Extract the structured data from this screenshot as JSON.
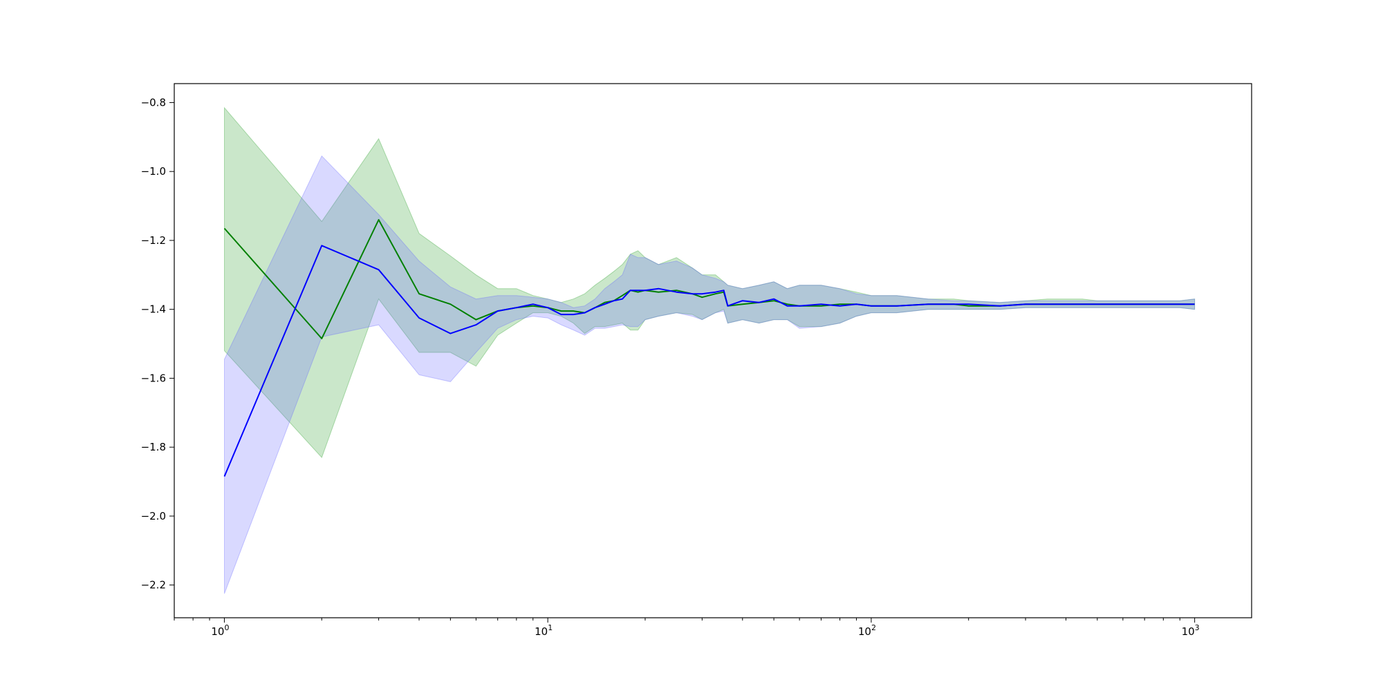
{
  "chart_data": {
    "type": "line",
    "title": "",
    "xlabel": "",
    "ylabel": "",
    "xscale": "log",
    "xlim": [
      0.7,
      1500
    ],
    "ylim": [
      -2.295,
      -0.745
    ],
    "grid": false,
    "legend": "none",
    "x_major_ticks": [
      {
        "value": 1,
        "base": "10",
        "exp": "0"
      },
      {
        "value": 10,
        "base": "10",
        "exp": "1"
      },
      {
        "value": 100,
        "base": "10",
        "exp": "2"
      },
      {
        "value": 1000,
        "base": "10",
        "exp": "3"
      }
    ],
    "y_ticks": [
      {
        "value": -0.8,
        "label": "−0.8"
      },
      {
        "value": -1.0,
        "label": "−1.0"
      },
      {
        "value": -1.2,
        "label": "−1.2"
      },
      {
        "value": -1.4,
        "label": "−1.4"
      },
      {
        "value": -1.6,
        "label": "−1.6"
      },
      {
        "value": -1.8,
        "label": "−1.8"
      },
      {
        "value": -2.0,
        "label": "−2.0"
      },
      {
        "value": -2.2,
        "label": "−2.2"
      }
    ],
    "series": [
      {
        "color": "#008000",
        "band_color": "#2ca02c",
        "x": [
          1,
          2,
          3,
          4,
          5,
          6,
          7,
          8,
          9,
          10,
          11,
          12,
          13,
          14,
          15,
          16,
          17,
          18,
          19,
          20,
          22,
          25,
          28,
          30,
          33,
          35,
          36,
          40,
          45,
          50,
          55,
          60,
          70,
          80,
          90,
          100,
          120,
          150,
          180,
          200,
          250,
          300,
          350,
          400,
          450,
          500,
          600,
          700,
          800,
          900,
          1000
        ],
        "mean": [
          -1.165,
          -1.485,
          -1.14,
          -1.355,
          -1.385,
          -1.43,
          -1.405,
          -1.395,
          -1.39,
          -1.395,
          -1.405,
          -1.405,
          -1.41,
          -1.395,
          -1.38,
          -1.375,
          -1.36,
          -1.345,
          -1.35,
          -1.345,
          -1.35,
          -1.345,
          -1.355,
          -1.365,
          -1.355,
          -1.35,
          -1.39,
          -1.385,
          -1.38,
          -1.375,
          -1.385,
          -1.39,
          -1.39,
          -1.385,
          -1.385,
          -1.39,
          -1.39,
          -1.385,
          -1.385,
          -1.39,
          -1.39,
          -1.385,
          -1.385,
          -1.385,
          -1.385,
          -1.385,
          -1.385,
          -1.385,
          -1.385,
          -1.385,
          -1.385
        ],
        "upper": [
          -0.815,
          -1.145,
          -0.905,
          -1.18,
          -1.245,
          -1.3,
          -1.34,
          -1.34,
          -1.36,
          -1.37,
          -1.38,
          -1.37,
          -1.355,
          -1.33,
          -1.31,
          -1.29,
          -1.27,
          -1.24,
          -1.23,
          -1.25,
          -1.27,
          -1.25,
          -1.28,
          -1.3,
          -1.3,
          -1.32,
          -1.33,
          -1.34,
          -1.33,
          -1.32,
          -1.34,
          -1.33,
          -1.33,
          -1.34,
          -1.35,
          -1.36,
          -1.36,
          -1.37,
          -1.37,
          -1.375,
          -1.38,
          -1.375,
          -1.37,
          -1.37,
          -1.37,
          -1.375,
          -1.375,
          -1.375,
          -1.375,
          -1.375,
          -1.37
        ],
        "lower": [
          -1.52,
          -1.83,
          -1.37,
          -1.525,
          -1.525,
          -1.565,
          -1.475,
          -1.44,
          -1.41,
          -1.41,
          -1.42,
          -1.44,
          -1.47,
          -1.45,
          -1.45,
          -1.445,
          -1.44,
          -1.46,
          -1.46,
          -1.43,
          -1.42,
          -1.41,
          -1.415,
          -1.43,
          -1.41,
          -1.4,
          -1.44,
          -1.43,
          -1.44,
          -1.43,
          -1.43,
          -1.45,
          -1.45,
          -1.44,
          -1.42,
          -1.41,
          -1.41,
          -1.4,
          -1.4,
          -1.4,
          -1.4,
          -1.395,
          -1.395,
          -1.395,
          -1.395,
          -1.395,
          -1.395,
          -1.395,
          -1.395,
          -1.395,
          -1.4
        ]
      },
      {
        "color": "#0000ff",
        "band_color": "#6666ff",
        "x": [
          1,
          2,
          3,
          4,
          5,
          6,
          7,
          8,
          9,
          10,
          11,
          12,
          13,
          14,
          15,
          16,
          17,
          18,
          19,
          20,
          22,
          25,
          28,
          30,
          33,
          35,
          36,
          40,
          45,
          50,
          55,
          60,
          70,
          80,
          90,
          100,
          120,
          150,
          180,
          200,
          250,
          300,
          350,
          400,
          450,
          500,
          600,
          700,
          800,
          900,
          1000
        ],
        "mean": [
          -1.885,
          -1.215,
          -1.285,
          -1.425,
          -1.47,
          -1.445,
          -1.405,
          -1.395,
          -1.385,
          -1.395,
          -1.415,
          -1.415,
          -1.41,
          -1.395,
          -1.385,
          -1.375,
          -1.37,
          -1.345,
          -1.345,
          -1.345,
          -1.34,
          -1.35,
          -1.355,
          -1.355,
          -1.35,
          -1.345,
          -1.39,
          -1.375,
          -1.38,
          -1.37,
          -1.39,
          -1.39,
          -1.385,
          -1.39,
          -1.385,
          -1.39,
          -1.39,
          -1.385,
          -1.385,
          -1.385,
          -1.39,
          -1.385,
          -1.385,
          -1.385,
          -1.385,
          -1.385,
          -1.385,
          -1.385,
          -1.385,
          -1.385,
          -1.385
        ],
        "upper": [
          -1.545,
          -0.955,
          -1.125,
          -1.26,
          -1.335,
          -1.37,
          -1.36,
          -1.36,
          -1.365,
          -1.37,
          -1.38,
          -1.395,
          -1.39,
          -1.37,
          -1.34,
          -1.32,
          -1.3,
          -1.24,
          -1.25,
          -1.25,
          -1.27,
          -1.26,
          -1.28,
          -1.3,
          -1.31,
          -1.32,
          -1.33,
          -1.34,
          -1.33,
          -1.32,
          -1.34,
          -1.33,
          -1.33,
          -1.34,
          -1.355,
          -1.36,
          -1.36,
          -1.37,
          -1.375,
          -1.375,
          -1.38,
          -1.375,
          -1.375,
          -1.375,
          -1.375,
          -1.375,
          -1.375,
          -1.375,
          -1.375,
          -1.375,
          -1.37
        ],
        "lower": [
          -2.225,
          -1.48,
          -1.445,
          -1.59,
          -1.61,
          -1.525,
          -1.455,
          -1.43,
          -1.42,
          -1.425,
          -1.445,
          -1.46,
          -1.475,
          -1.455,
          -1.455,
          -1.45,
          -1.445,
          -1.45,
          -1.45,
          -1.43,
          -1.42,
          -1.41,
          -1.42,
          -1.43,
          -1.41,
          -1.405,
          -1.44,
          -1.43,
          -1.44,
          -1.43,
          -1.43,
          -1.455,
          -1.45,
          -1.44,
          -1.42,
          -1.41,
          -1.41,
          -1.4,
          -1.4,
          -1.4,
          -1.4,
          -1.395,
          -1.395,
          -1.395,
          -1.395,
          -1.395,
          -1.395,
          -1.395,
          -1.395,
          -1.395,
          -1.4
        ]
      }
    ]
  }
}
